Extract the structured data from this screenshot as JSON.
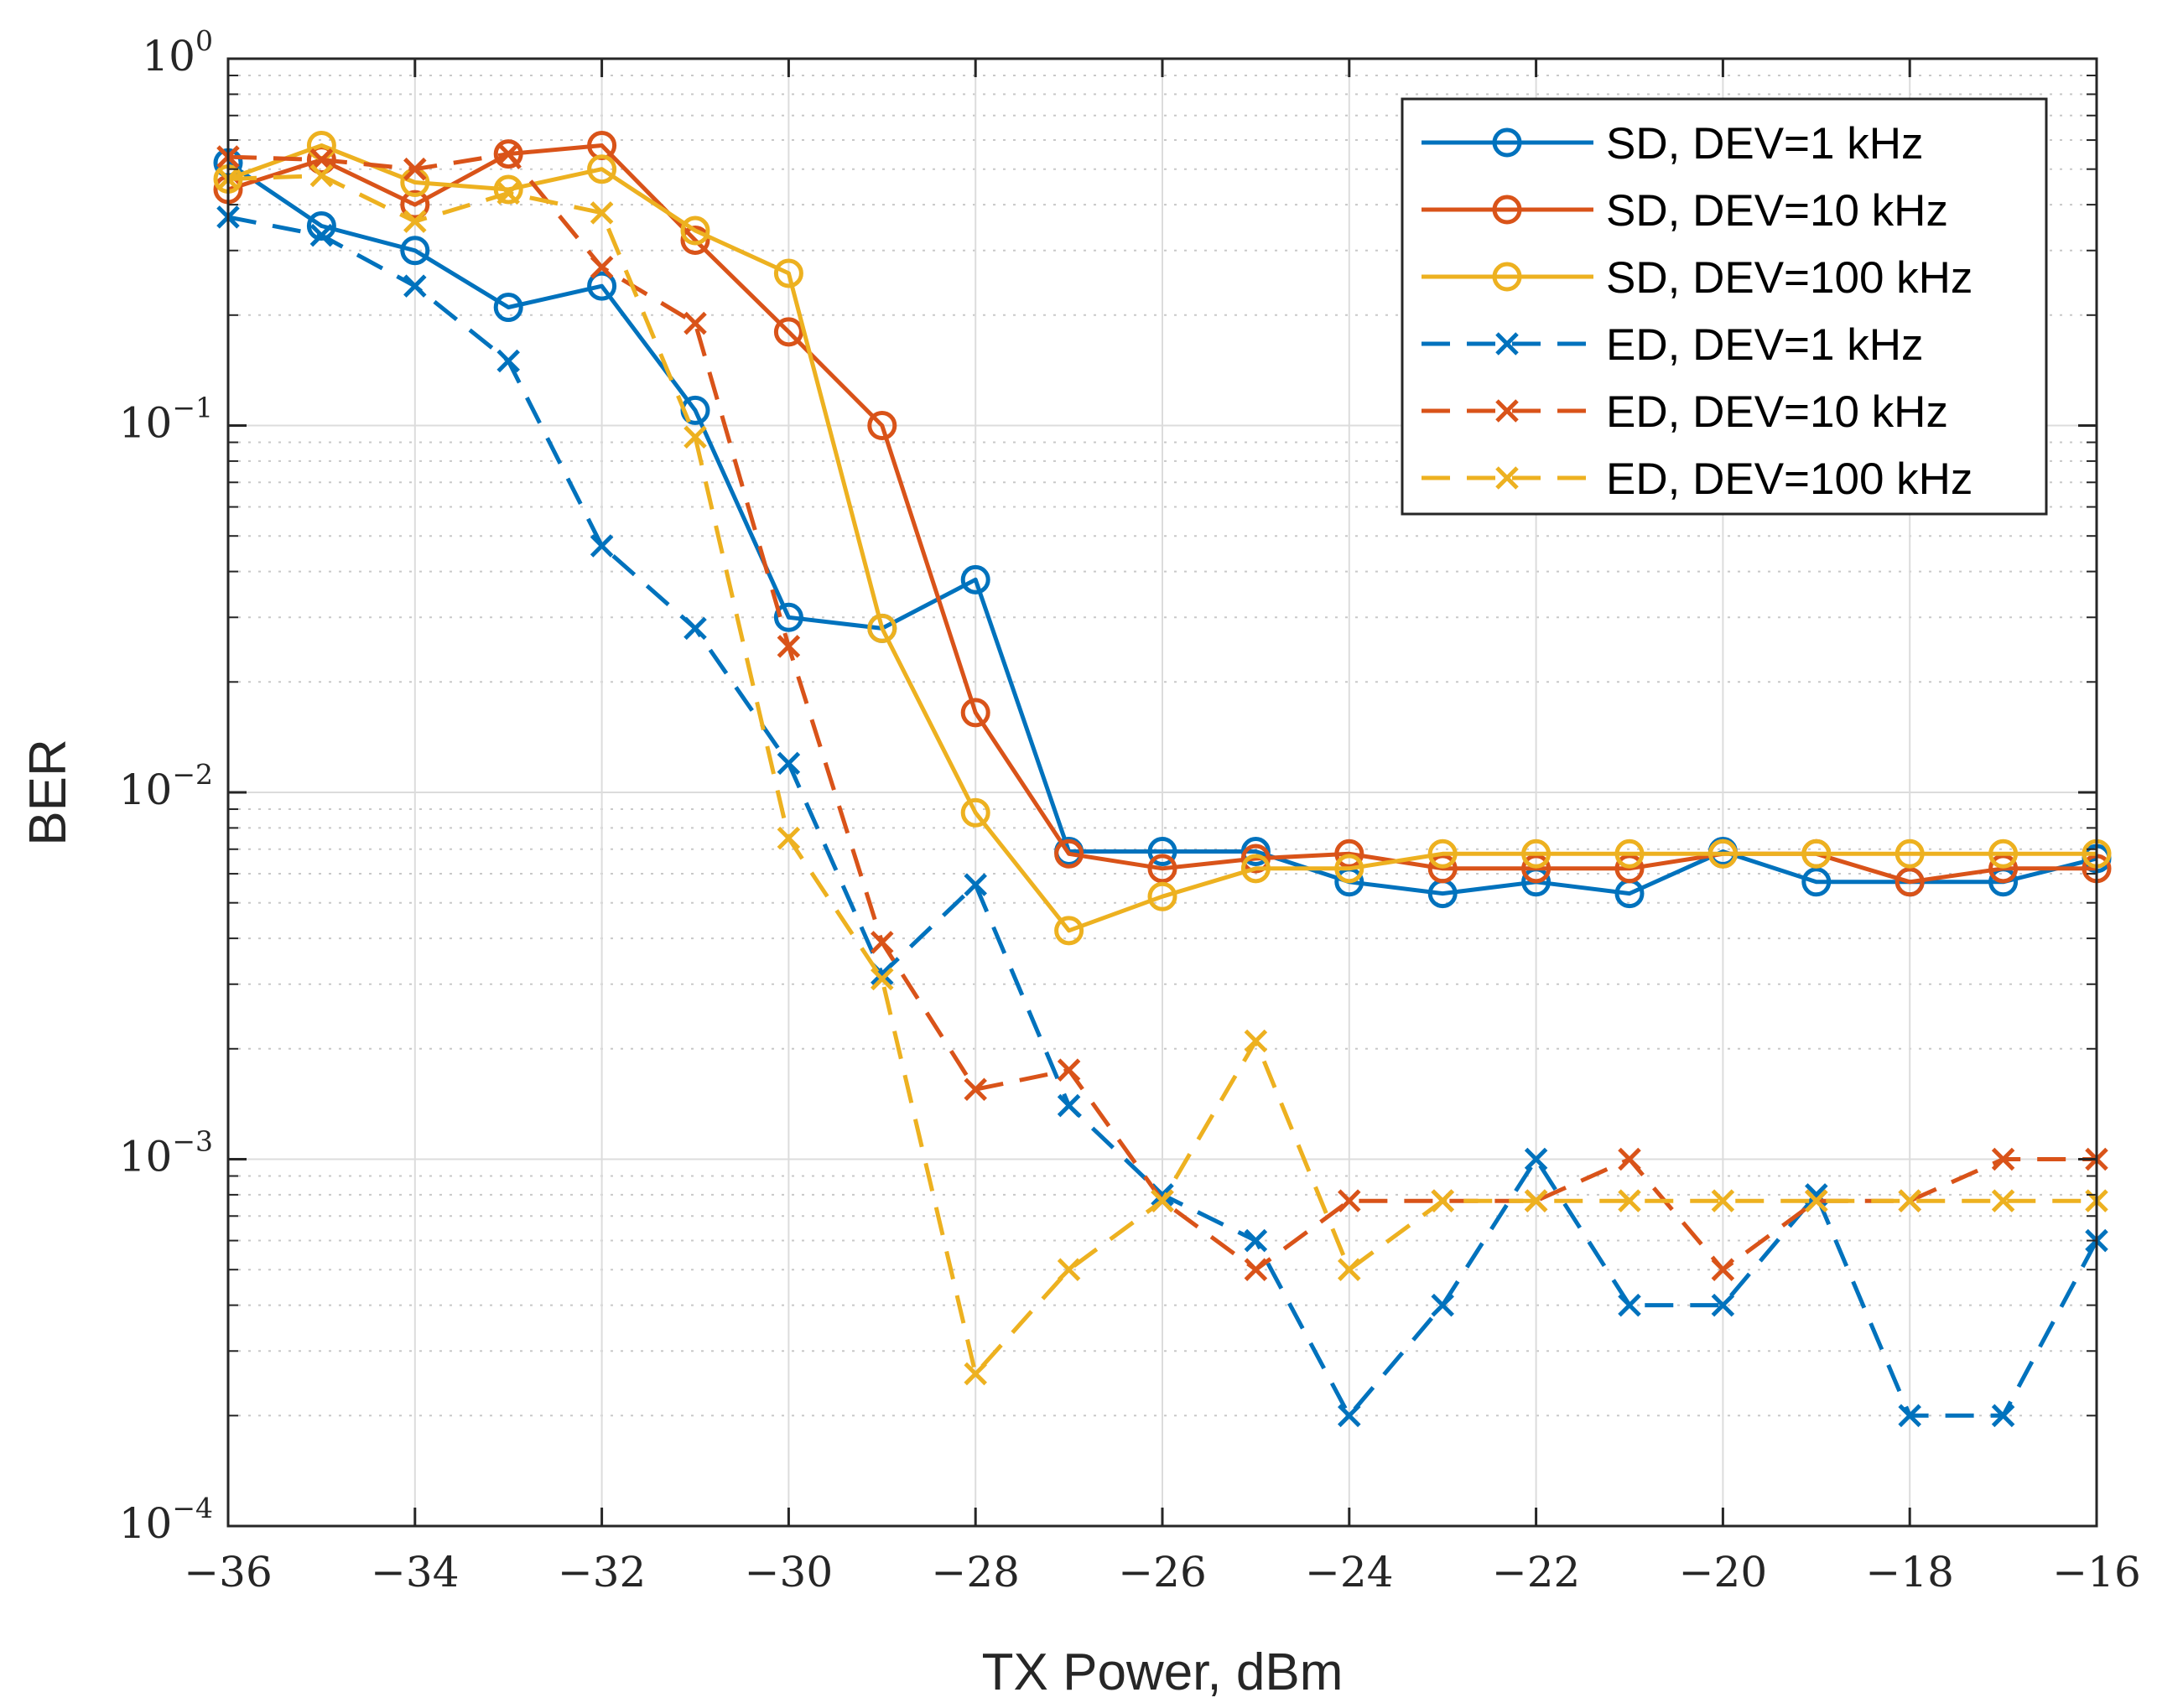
{
  "chart_data": {
    "type": "line",
    "title": "",
    "xlabel": "TX Power, dBm",
    "ylabel": "BER",
    "xlim": [
      -36,
      -16
    ],
    "ylim": [
      0.0001,
      1
    ],
    "yscale": "log",
    "grid": true,
    "minor_grid": true,
    "legend_position": "top-right",
    "x": [
      -36,
      -35,
      -34,
      -33,
      -32,
      -31,
      -30,
      -29,
      -28,
      -27,
      -26,
      -25,
      -24,
      -23,
      -22,
      -21,
      -20,
      -19,
      -18,
      -17,
      -16
    ],
    "xticks": [
      -36,
      -34,
      -32,
      -30,
      -28,
      -26,
      -24,
      -22,
      -20,
      -18,
      -16
    ],
    "xtick_labels": [
      "−36",
      "−34",
      "−32",
      "−30",
      "−28",
      "−26",
      "−24",
      "−22",
      "−20",
      "−18",
      "−16"
    ],
    "yticks": [
      {
        "value": 1,
        "base": "10",
        "exp": "0"
      },
      {
        "value": 0.1,
        "base": "10",
        "exp": "−1"
      },
      {
        "value": 0.01,
        "base": "10",
        "exp": "−2"
      },
      {
        "value": 0.001,
        "base": "10",
        "exp": "−3"
      },
      {
        "value": 0.0001,
        "base": "10",
        "exp": "−4"
      }
    ],
    "series": [
      {
        "name": "SD, DEV=1 kHz",
        "color": "#0072BD",
        "style": "solid",
        "marker": "circle",
        "values": [
          0.52,
          0.35,
          0.3,
          0.21,
          0.24,
          0.11,
          0.03,
          0.028,
          0.038,
          0.0069,
          0.0069,
          0.0069,
          0.0057,
          0.0053,
          0.0057,
          0.0053,
          0.0069,
          0.0057,
          0.0057,
          0.0057,
          0.0066
        ]
      },
      {
        "name": "SD, DEV=10 kHz",
        "color": "#D95319",
        "style": "solid",
        "marker": "circle",
        "values": [
          0.44,
          0.53,
          0.4,
          0.55,
          0.58,
          0.32,
          0.18,
          0.1,
          0.0165,
          0.0068,
          0.0062,
          0.0066,
          0.0068,
          0.0062,
          0.0062,
          0.0062,
          0.0068,
          0.0068,
          0.0057,
          0.0062,
          0.0062
        ]
      },
      {
        "name": "SD, DEV=100 kHz",
        "color": "#EDB120",
        "style": "solid",
        "marker": "circle",
        "values": [
          0.47,
          0.58,
          0.46,
          0.44,
          0.5,
          0.34,
          0.26,
          0.028,
          0.0088,
          0.0042,
          0.0052,
          0.0062,
          0.0062,
          0.0068,
          0.0068,
          0.0068,
          0.0068,
          0.0068,
          0.0068,
          0.0068,
          0.0068
        ]
      },
      {
        "name": "ED, DEV=1 kHz",
        "color": "#0072BD",
        "style": "dashed",
        "marker": "x",
        "values": [
          0.37,
          0.33,
          0.24,
          0.15,
          0.047,
          0.028,
          0.012,
          0.0032,
          0.0056,
          0.0014,
          0.0008,
          0.0006,
          0.0002,
          0.0004,
          0.001,
          0.0004,
          0.0004,
          0.0008,
          0.0002,
          0.0002,
          0.0006
        ]
      },
      {
        "name": "ED, DEV=10 kHz",
        "color": "#D95319",
        "style": "dashed",
        "marker": "x",
        "values": [
          0.54,
          0.53,
          0.5,
          0.55,
          0.27,
          0.19,
          0.025,
          0.0039,
          0.00155,
          0.00175,
          0.00077,
          0.0005,
          0.00077,
          0.00077,
          0.00077,
          0.001,
          0.0005,
          0.00077,
          0.00077,
          0.001,
          0.001
        ]
      },
      {
        "name": "ED, DEV=100 kHz",
        "color": "#EDB120",
        "style": "dashed",
        "marker": "x",
        "values": [
          0.47,
          0.48,
          0.36,
          0.43,
          0.38,
          0.093,
          0.0075,
          0.0031,
          0.00026,
          0.0005,
          0.00077,
          0.0021,
          0.0005,
          0.00077,
          0.00077,
          0.00077,
          0.00077,
          0.00077,
          0.00077,
          0.00077,
          0.00077
        ]
      }
    ]
  }
}
